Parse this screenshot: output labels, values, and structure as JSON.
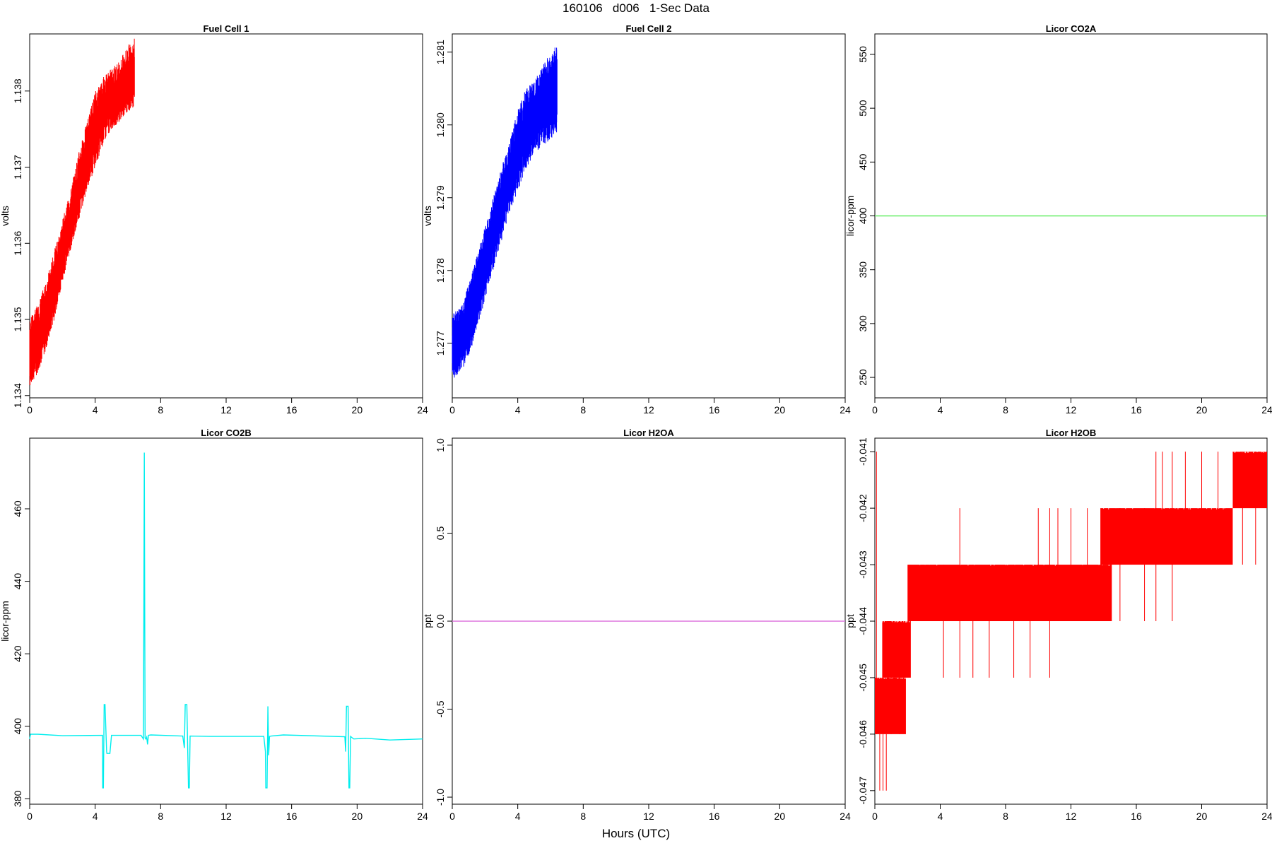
{
  "figure": {
    "title": "160106   d006   1-Sec Data",
    "xlabel": "Hours (UTC)"
  },
  "chart_data": [
    {
      "type": "line",
      "title": "Fuel Cell 1",
      "ylabel": "volts",
      "color": "#ff0000",
      "xlim": [
        0,
        24
      ],
      "ylim": [
        1.13397,
        1.13875
      ],
      "xticks": [
        0,
        4,
        8,
        12,
        16,
        20,
        24
      ],
      "yticks": [
        1.134,
        1.135,
        1.136,
        1.137,
        1.138
      ],
      "yticklabels": [
        "1.134",
        "1.135",
        "1.136",
        "1.137",
        "1.138"
      ],
      "band": {
        "x": [
          0,
          0.5,
          1.0,
          1.5,
          2.0,
          2.5,
          3.0,
          3.5,
          4.0,
          4.5,
          5.0,
          5.5,
          6.0,
          6.4
        ],
        "low": [
          1.1341,
          1.1343,
          1.1346,
          1.135,
          1.1355,
          1.1359,
          1.1363,
          1.1367,
          1.137,
          1.1373,
          1.1375,
          1.1376,
          1.1377,
          1.1378
        ],
        "high": [
          1.135,
          1.1352,
          1.1355,
          1.1359,
          1.1363,
          1.1367,
          1.1372,
          1.1376,
          1.138,
          1.1382,
          1.1383,
          1.1384,
          1.1386,
          1.1387
        ]
      }
    },
    {
      "type": "line",
      "title": "Fuel Cell 2",
      "ylabel": "volts",
      "color": "#0000ff",
      "xlim": [
        0,
        24
      ],
      "ylim": [
        1.27625,
        1.28125
      ],
      "xticks": [
        0,
        4,
        8,
        12,
        16,
        20,
        24
      ],
      "yticks": [
        1.277,
        1.278,
        1.279,
        1.28,
        1.281
      ],
      "yticklabels": [
        "1.277",
        "1.278",
        "1.279",
        "1.280",
        "1.281"
      ],
      "band": {
        "x": [
          0,
          0.5,
          1.0,
          1.5,
          2.0,
          2.5,
          3.0,
          3.5,
          4.0,
          4.5,
          5.0,
          5.5,
          6.0,
          6.4
        ],
        "low": [
          1.2765,
          1.2766,
          1.2768,
          1.2772,
          1.2776,
          1.278,
          1.2784,
          1.2788,
          1.2791,
          1.2794,
          1.2796,
          1.2797,
          1.2798,
          1.2799
        ],
        "high": [
          1.2774,
          1.2775,
          1.2778,
          1.2782,
          1.2786,
          1.279,
          1.2794,
          1.2798,
          1.2802,
          1.2805,
          1.2806,
          1.2808,
          1.281,
          1.2811
        ]
      }
    },
    {
      "type": "line",
      "title": "Licor CO2A",
      "ylabel": "licor-ppm",
      "color": "#66ee66",
      "xlim": [
        0,
        24
      ],
      "ylim": [
        231,
        569
      ],
      "xticks": [
        0,
        4,
        8,
        12,
        16,
        20,
        24
      ],
      "yticks": [
        250,
        300,
        350,
        400,
        450,
        500,
        550
      ],
      "yticklabels": [
        "250",
        "300",
        "350",
        "400",
        "450",
        "500",
        "550"
      ],
      "series": [
        {
          "x": [
            0,
            24
          ],
          "y": [
            400,
            400
          ]
        }
      ]
    },
    {
      "type": "line",
      "title": "Licor CO2B",
      "ylabel": "licor-ppm",
      "color": "#00eeee",
      "xlim": [
        0,
        24
      ],
      "ylim": [
        378.5,
        479.5
      ],
      "xticks": [
        0,
        4,
        8,
        12,
        16,
        20,
        24
      ],
      "yticks": [
        380,
        400,
        420,
        440,
        460
      ],
      "yticklabels": [
        "380",
        "400",
        "420",
        "440",
        "460"
      ],
      "series": [
        {
          "x": [
            0,
            0.05,
            0.5,
            2,
            4.45,
            4.46,
            4.5,
            4.55,
            4.6,
            4.7,
            4.72,
            4.9,
            5.0,
            6.8,
            6.95,
            7.0,
            7.05,
            7.1,
            7.15,
            7.2,
            7.25,
            7.4,
            9.35,
            9.45,
            9.5,
            9.6,
            9.7,
            9.75,
            9.8,
            11,
            14.3,
            14.4,
            14.42,
            14.5,
            14.55,
            14.6,
            14.65,
            14.75,
            15.5,
            19.25,
            19.3,
            19.35,
            19.45,
            19.5,
            19.55,
            19.6,
            19.65,
            19.7,
            19.8,
            20.5,
            22,
            24
          ],
          "y": [
            396.5,
            397.8,
            397.8,
            397.4,
            397.5,
            383,
            383,
            406,
            406,
            393,
            392.5,
            392.5,
            397.5,
            397.5,
            396.5,
            475.5,
            396.8,
            396.5,
            397,
            395,
            397.5,
            397.6,
            397.3,
            394,
            406,
            406,
            383,
            383,
            397.3,
            397.2,
            397.2,
            393,
            383,
            383,
            405.5,
            392,
            397.2,
            397.3,
            397.6,
            397.1,
            393,
            405.5,
            405.5,
            383,
            383,
            397.2,
            397,
            396.8,
            396.5,
            396.7,
            396.2,
            396.5
          ]
        }
      ]
    },
    {
      "type": "line",
      "title": "Licor H2OA",
      "ylabel": "ppt",
      "color": "#dd77dd",
      "xlim": [
        0,
        24
      ],
      "ylim": [
        -1.04,
        1.04
      ],
      "xticks": [
        0,
        4,
        8,
        12,
        16,
        20,
        24
      ],
      "yticks": [
        -1,
        -0.5,
        0,
        0.5,
        1
      ],
      "yticklabels": [
        "-1.0",
        "-0.5",
        "0.0",
        "0.5",
        "1.0"
      ],
      "series": [
        {
          "x": [
            0,
            24
          ],
          "y": [
            0,
            0
          ]
        }
      ]
    },
    {
      "type": "line",
      "title": "Licor H2OB",
      "ylabel": "ppt",
      "color": "#ff0000",
      "xlim": [
        0,
        24
      ],
      "ylim": [
        -0.04724,
        -0.04076
      ],
      "xticks": [
        0,
        4,
        8,
        12,
        16,
        20,
        24
      ],
      "yticks": [
        -0.047,
        -0.046,
        -0.045,
        -0.044,
        -0.043,
        -0.042,
        -0.041
      ],
      "yticklabels": [
        "-0.047",
        "-0.046",
        "-0.045",
        "-0.044",
        "-0.043",
        "-0.042",
        "-0.041"
      ],
      "levels": [
        {
          "x0": 0,
          "x1": 1.9,
          "low": -0.046,
          "high": -0.045
        },
        {
          "x0": 0.45,
          "x1": 2.2,
          "low": -0.045,
          "high": -0.044
        },
        {
          "x0": 2.0,
          "x1": 14.5,
          "low": -0.044,
          "high": -0.043
        },
        {
          "x0": 13.8,
          "x1": 21.9,
          "low": -0.043,
          "high": -0.042
        },
        {
          "x0": 21.9,
          "x1": 24,
          "low": -0.042,
          "high": -0.041
        }
      ],
      "spikes": [
        [
          0.1,
          -0.041,
          -0.046
        ],
        [
          0.3,
          -0.047,
          -0.046
        ],
        [
          0.5,
          -0.047,
          -0.046
        ],
        [
          0.7,
          -0.047,
          -0.046
        ],
        [
          1.0,
          -0.046,
          -0.044
        ],
        [
          1.5,
          -0.046,
          -0.044
        ],
        [
          4.2,
          -0.045,
          -0.043
        ],
        [
          5.2,
          -0.045,
          -0.042
        ],
        [
          6.0,
          -0.045,
          -0.043
        ],
        [
          7.0,
          -0.045,
          -0.043
        ],
        [
          8.5,
          -0.045,
          -0.043
        ],
        [
          9.5,
          -0.045,
          -0.043
        ],
        [
          10.0,
          -0.044,
          -0.042
        ],
        [
          10.7,
          -0.045,
          -0.042
        ],
        [
          11.2,
          -0.044,
          -0.042
        ],
        [
          12.0,
          -0.044,
          -0.042
        ],
        [
          13.0,
          -0.044,
          -0.042
        ],
        [
          15.0,
          -0.044,
          -0.042
        ],
        [
          16.5,
          -0.044,
          -0.042
        ],
        [
          17.2,
          -0.044,
          -0.041
        ],
        [
          17.6,
          -0.043,
          -0.041
        ],
        [
          18.2,
          -0.044,
          -0.041
        ],
        [
          19.0,
          -0.043,
          -0.041
        ],
        [
          20.0,
          -0.043,
          -0.041
        ],
        [
          21.0,
          -0.043,
          -0.041
        ],
        [
          22.5,
          -0.043,
          -0.041
        ],
        [
          23.3,
          -0.043,
          -0.041
        ]
      ]
    }
  ]
}
